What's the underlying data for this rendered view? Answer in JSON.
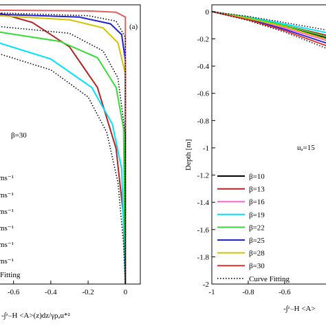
{
  "chart_data": [
    {
      "type": "line",
      "panel_label": "(a)",
      "xlabel": "-∫ᶻ₋H <A>(z)dz/γρₐu*²",
      "xticks": [
        "-0.6",
        "-0.4",
        "-0.2",
        "0"
      ],
      "xlim": [
        -0.68,
        0.08
      ],
      "ylim": [
        -2,
        0.06
      ],
      "annotation": "β=30",
      "legend_partial": [
        "ms⁻¹",
        "ms⁻¹",
        "ms⁻¹",
        "ms⁻¹",
        "ms⁻¹",
        "ms⁻¹",
        "Fitting"
      ],
      "series": [
        {
          "color": "#b22222",
          "values": [
            [
              -0.68,
              0.0
            ],
            [
              -0.5,
              -0.07
            ],
            [
              -0.3,
              -0.25
            ],
            [
              -0.15,
              -0.55
            ],
            [
              -0.05,
              -1.0
            ],
            [
              -0.01,
              -1.5
            ],
            [
              0,
              -2.0
            ]
          ]
        },
        {
          "color": "#00e0ff",
          "values": [
            [
              -0.68,
              -0.22
            ],
            [
              -0.4,
              -0.34
            ],
            [
              -0.18,
              -0.55
            ],
            [
              -0.07,
              -0.82
            ],
            [
              -0.02,
              -1.15
            ],
            [
              0,
              -2.0
            ]
          ]
        },
        {
          "color": "#33dd33",
          "values": [
            [
              -0.68,
              -0.14
            ],
            [
              -0.35,
              -0.21
            ],
            [
              -0.15,
              -0.33
            ],
            [
              -0.05,
              -0.55
            ],
            [
              -0.01,
              -0.85
            ],
            [
              0,
              -2.0
            ]
          ]
        },
        {
          "color": "#d4c100",
          "values": [
            [
              -0.68,
              -0.02
            ],
            [
              -0.3,
              -0.05
            ],
            [
              -0.12,
              -0.11
            ],
            [
              -0.04,
              -0.22
            ],
            [
              0,
              -0.45
            ],
            [
              0,
              -2.0
            ]
          ]
        },
        {
          "color": "#1f1fd6",
          "values": [
            [
              -0.68,
              -0.01
            ],
            [
              -0.25,
              -0.03
            ],
            [
              -0.08,
              -0.08
            ],
            [
              -0.02,
              -0.16
            ],
            [
              0,
              -0.35
            ],
            [
              0,
              -2.0
            ]
          ]
        },
        {
          "color": "#e06060",
          "values": [
            [
              -0.68,
              0.02
            ],
            [
              -0.2,
              0.015
            ],
            [
              -0.05,
              0.005
            ],
            [
              0,
              -0.03
            ],
            [
              0,
              -2.0
            ]
          ]
        }
      ],
      "fits": [
        [
          [
            -0.68,
            -0.3
          ],
          [
            -0.4,
            -0.42
          ],
          [
            -0.2,
            -0.62
          ],
          [
            -0.1,
            -0.88
          ],
          [
            -0.04,
            -1.25
          ],
          [
            -0.01,
            -1.7
          ],
          [
            0,
            -2.0
          ]
        ],
        [
          [
            -0.68,
            -0.1
          ],
          [
            -0.3,
            -0.15
          ],
          [
            -0.12,
            -0.28
          ],
          [
            -0.04,
            -0.48
          ],
          [
            0,
            -0.9
          ],
          [
            0,
            -2.0
          ]
        ],
        [
          [
            -0.68,
            0.0
          ],
          [
            -0.2,
            -0.02
          ],
          [
            -0.05,
            -0.06
          ],
          [
            0,
            -0.18
          ],
          [
            0,
            -2.0
          ]
        ]
      ]
    },
    {
      "type": "line",
      "xlabel": "-∫ᶻ₋H <A>",
      "ylabel": "Depth [m]",
      "xticks": [
        "-1",
        "-0.8",
        "-0.6"
      ],
      "yticks": [
        "0",
        "-0.2",
        "-0.4",
        "-0.6",
        "-0.8",
        "-1",
        "-1.2",
        "-1.4",
        "-1.6",
        "-1.8",
        "-2"
      ],
      "xlim": [
        -1,
        -0.35
      ],
      "ylim": [
        -2,
        0.05
      ],
      "annotation": "uₐ=15",
      "legend": [
        {
          "label": "β=10",
          "color": "#000000"
        },
        {
          "label": "β=13",
          "color": "#b22222"
        },
        {
          "label": "β=16",
          "color": "#ff66cc"
        },
        {
          "label": "β=19",
          "color": "#00e0ff"
        },
        {
          "label": "β=22",
          "color": "#33dd33"
        },
        {
          "label": "β=25",
          "color": "#1f1fd6"
        },
        {
          "label": "β=28",
          "color": "#d4c100"
        },
        {
          "label": "β=30",
          "color": "#e03030"
        },
        {
          "label": "Curve Fitting",
          "color": "#000000",
          "dotted": true
        }
      ],
      "series": [
        {
          "color": "#000000",
          "values": [
            [
              -1,
              0
            ],
            [
              -0.8,
              -0.05
            ],
            [
              -0.6,
              -0.11
            ],
            [
              -0.35,
              -0.2
            ]
          ]
        },
        {
          "color": "#b22222",
          "values": [
            [
              -1,
              0
            ],
            [
              -0.8,
              -0.045
            ],
            [
              -0.6,
              -0.1
            ],
            [
              -0.35,
              -0.18
            ]
          ]
        },
        {
          "color": "#ff66cc",
          "values": [
            [
              -1,
              0
            ],
            [
              -0.8,
              -0.05
            ],
            [
              -0.6,
              -0.12
            ],
            [
              -0.35,
              -0.22
            ]
          ]
        },
        {
          "color": "#00e0ff",
          "values": [
            [
              -1,
              0
            ],
            [
              -0.8,
              -0.04
            ],
            [
              -0.6,
              -0.09
            ],
            [
              -0.35,
              -0.16
            ]
          ]
        },
        {
          "color": "#33dd33",
          "values": [
            [
              -1,
              0
            ],
            [
              -0.8,
              -0.045
            ],
            [
              -0.6,
              -0.1
            ],
            [
              -0.35,
              -0.19
            ]
          ]
        },
        {
          "color": "#1f1fd6",
          "values": [
            [
              -1,
              0
            ],
            [
              -0.8,
              -0.055
            ],
            [
              -0.6,
              -0.13
            ],
            [
              -0.35,
              -0.24
            ]
          ]
        },
        {
          "color": "#d4c100",
          "values": [
            [
              -1,
              0
            ],
            [
              -0.8,
              -0.05
            ],
            [
              -0.6,
              -0.11
            ],
            [
              -0.35,
              -0.21
            ]
          ]
        },
        {
          "color": "#e03030",
          "values": [
            [
              -1,
              0
            ],
            [
              -0.8,
              -0.06
            ],
            [
              -0.6,
              -0.14
            ],
            [
              -0.35,
              -0.26
            ]
          ]
        }
      ],
      "fits": [
        [
          [
            -1,
            0
          ],
          [
            -0.8,
            -0.065
          ],
          [
            -0.6,
            -0.15
          ],
          [
            -0.35,
            -0.28
          ]
        ],
        [
          [
            -1,
            0
          ],
          [
            -0.8,
            -0.035
          ],
          [
            -0.6,
            -0.08
          ],
          [
            -0.35,
            -0.14
          ]
        ]
      ]
    }
  ]
}
